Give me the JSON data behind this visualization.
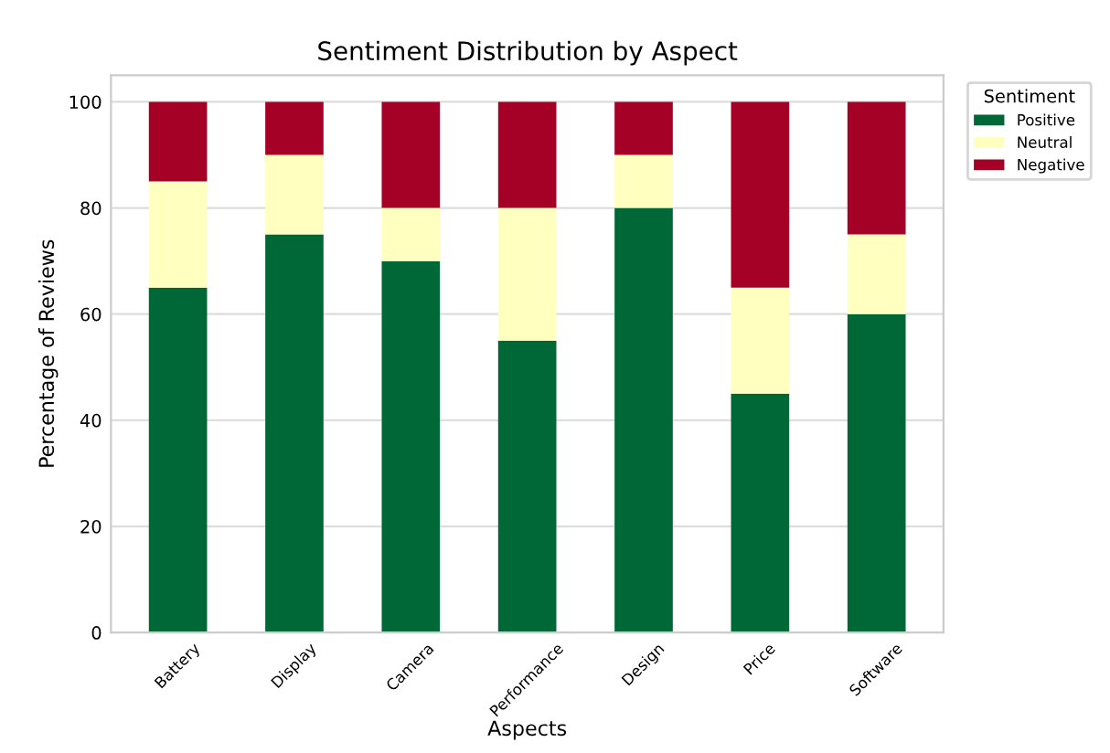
{
  "chart_data": {
    "type": "bar",
    "stacked": true,
    "title": "Sentiment Distribution by Aspect",
    "xlabel": "Aspects",
    "ylabel": "Percentage of Reviews",
    "legend_title": "Sentiment",
    "legend": "top right",
    "grid": "y",
    "categories": [
      "Battery",
      "Display",
      "Camera",
      "Performance",
      "Design",
      "Price",
      "Software"
    ],
    "series": [
      {
        "name": "Positive",
        "color": "#006837",
        "values": [
          65,
          75,
          70,
          55,
          80,
          45,
          60
        ]
      },
      {
        "name": "Neutral",
        "color": "#ffffbf",
        "values": [
          20,
          15,
          10,
          25,
          10,
          20,
          15
        ]
      },
      {
        "name": "Negative",
        "color": "#a50026",
        "values": [
          15,
          10,
          20,
          20,
          10,
          35,
          25
        ]
      }
    ],
    "ylim": [
      0,
      105
    ],
    "yticks": [
      0,
      20,
      40,
      60,
      80,
      100
    ]
  }
}
